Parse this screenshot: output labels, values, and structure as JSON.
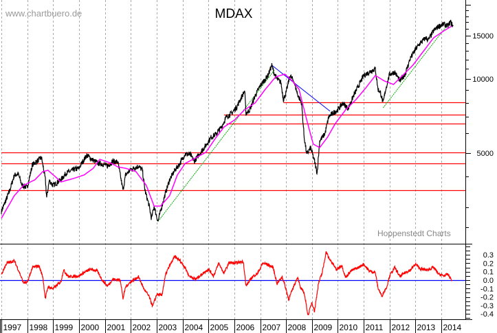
{
  "chart_data": [
    {
      "type": "line",
      "title": "MDAX",
      "watermark": "www.chartbuero.de",
      "source": "Hoppenstedt Charts",
      "y_scale": "log",
      "ylim": [
        2137,
        20960
      ],
      "xlim": [
        1997.0,
        2014.95
      ],
      "grid": "vertical dashed at each year",
      "y_ticks": [
        5000,
        10000,
        15000
      ],
      "x_ticks": [
        "1997",
        "1998",
        "1999",
        "2000",
        "2001",
        "2002",
        "2003",
        "2004",
        "2005",
        "2006",
        "2007",
        "2008",
        "2009",
        "2010",
        "2011",
        "2012",
        "2013",
        "2014"
      ],
      "colors": {
        "price": "#000000",
        "moving_average": "#ff00ff",
        "support_resistance": "#ff0000",
        "uptrend": "#00aa00",
        "downtrend": "#0000ff",
        "grid": "#999999"
      },
      "series": [
        {
          "key": "price",
          "x": [
            1997.0,
            1997.3,
            1997.5,
            1997.65,
            1997.8,
            1998.0,
            1998.2,
            1998.4,
            1998.55,
            1998.7,
            1998.75,
            1998.85,
            1999.0,
            1999.3,
            1999.5,
            1999.8,
            2000.0,
            2000.1,
            2000.2,
            2000.3,
            2000.5,
            2000.7,
            2001.0,
            2001.1,
            2001.3,
            2001.5,
            2001.7,
            2001.8,
            2002.0,
            2002.3,
            2002.45,
            2002.55,
            2002.7,
            2002.8,
            2002.9,
            2003.05,
            2003.2,
            2003.35,
            2003.5,
            2003.7,
            2003.9,
            2004.1,
            2004.3,
            2004.45,
            2004.7,
            2004.9,
            2005.1,
            2005.3,
            2005.5,
            2005.7,
            2005.9,
            2006.1,
            2006.3,
            2006.4,
            2006.45,
            2006.6,
            2006.8,
            2007.0,
            2007.3,
            2007.45,
            2007.55,
            2007.65,
            2007.8,
            2007.9,
            2008.0,
            2008.15,
            2008.3,
            2008.45,
            2008.6,
            2008.7,
            2008.8,
            2008.95,
            2009.1,
            2009.2,
            2009.3,
            2009.5,
            2009.65,
            2009.8,
            2010.0,
            2010.2,
            2010.4,
            2010.6,
            2010.8,
            2011.0,
            2011.3,
            2011.45,
            2011.55,
            2011.65,
            2011.75,
            2011.85,
            2012.0,
            2012.2,
            2012.4,
            2012.6,
            2012.8,
            2013.0,
            2013.2,
            2013.4,
            2013.5,
            2013.7,
            2013.9,
            2014.1,
            2014.25,
            2014.35,
            2014.45
          ],
          "values": [
            2890,
            3460,
            4060,
            4110,
            3690,
            3620,
            4480,
            4650,
            4800,
            3890,
            3290,
            3860,
            3690,
            3890,
            4140,
            4280,
            4330,
            4530,
            4710,
            4900,
            4710,
            4560,
            4480,
            4420,
            4620,
            4590,
            3530,
            4070,
            4280,
            4420,
            4250,
            3510,
            3080,
            2700,
            3040,
            2630,
            3040,
            3460,
            3890,
            4250,
            4530,
            4960,
            4930,
            4620,
            5030,
            5360,
            5790,
            5980,
            6370,
            7020,
            7250,
            7730,
            8520,
            8960,
            7250,
            7490,
            8520,
            9380,
            10330,
            11370,
            10460,
            10000,
            9680,
            8240,
            8790,
            10330,
            9810,
            8620,
            7980,
            5790,
            4930,
            5260,
            4620,
            4140,
            5610,
            5980,
            7020,
            7250,
            7490,
            7980,
            7580,
            8520,
            9380,
            10330,
            10800,
            11010,
            9080,
            8790,
            7980,
            9080,
            10460,
            10660,
            9810,
            10460,
            12130,
            13190,
            14060,
            14700,
            14410,
            15700,
            16400,
            16720,
            16400,
            17070,
            16400
          ]
        },
        {
          "key": "moving_average",
          "x": [
            1997.0,
            1997.5,
            1997.85,
            1998.3,
            1998.6,
            1998.8,
            1999.1,
            1999.3,
            1999.8,
            2000.2,
            2000.55,
            2000.8,
            2001.2,
            2001.5,
            2001.8,
            2002.2,
            2002.6,
            2002.9,
            2003.15,
            2003.5,
            2003.8,
            2004.1,
            2004.5,
            2004.9,
            2005.3,
            2005.6,
            2006.0,
            2006.4,
            2006.8,
            2007.2,
            2007.6,
            2007.95,
            2008.25,
            2008.5,
            2008.8,
            2009.05,
            2009.3,
            2009.6,
            2009.9,
            2010.3,
            2010.7,
            2011.1,
            2011.45,
            2011.8,
            2012.15,
            2012.5,
            2012.9,
            2013.3,
            2013.7,
            2014.1,
            2014.4
          ],
          "values": [
            2710,
            3350,
            3690,
            3890,
            4200,
            4250,
            3990,
            3810,
            3940,
            4070,
            4330,
            4710,
            4560,
            4390,
            4330,
            4200,
            3690,
            3040,
            3040,
            3350,
            4070,
            4530,
            4770,
            5030,
            5790,
            6370,
            6800,
            7490,
            7980,
            9080,
            10200,
            10460,
            9810,
            9080,
            6800,
            5430,
            5260,
            5790,
            6580,
            7490,
            8240,
            9250,
            10330,
            9810,
            9500,
            10330,
            11370,
            12930,
            14700,
            15700,
            16400
          ]
        }
      ],
      "horizontal_lines": [
        {
          "value": 8040,
          "from": 2007.9
        },
        {
          "value": 7160,
          "from": 2005.6
        },
        {
          "value": 6580,
          "from": 2005.7
        },
        {
          "value": 5030,
          "from": 1997.0
        },
        {
          "value": 4530,
          "from": 1997.0
        },
        {
          "value": 3530,
          "from": 1997.0
        }
      ],
      "trendlines": [
        {
          "key": "uptrend",
          "from": [
            2003.05,
            2630
          ],
          "to": [
            2007.55,
            10870
          ]
        },
        {
          "key": "uptrend",
          "from": [
            2011.75,
            7630
          ],
          "to": [
            2014.2,
            16400
          ]
        },
        {
          "key": "downtrend",
          "from": [
            2007.45,
            11370
          ],
          "to": [
            2009.7,
            7390
          ]
        }
      ]
    },
    {
      "type": "line",
      "ylim": [
        -0.45,
        0.38
      ],
      "y_ticks": [
        "0.3",
        "0.2",
        "0.1",
        "0.0",
        "-0.1",
        "-0.2",
        "-0.3",
        "-0.4"
      ],
      "zero_line_color": "#0000ff",
      "series": [
        {
          "key": "oscillator",
          "color": "#ff0000",
          "x": [
            1997.0,
            1997.2,
            1997.5,
            1997.7,
            1997.85,
            1998.0,
            1998.2,
            1998.45,
            1998.6,
            1998.7,
            1998.8,
            1999.0,
            1999.3,
            1999.4,
            1999.6,
            2000.0,
            2000.2,
            2000.45,
            2000.7,
            2000.9,
            2001.1,
            2001.3,
            2001.6,
            2001.7,
            2001.8,
            2002.0,
            2002.3,
            2002.5,
            2002.7,
            2002.85,
            2003.0,
            2003.2,
            2003.35,
            2003.5,
            2003.7,
            2003.9,
            2004.1,
            2004.25,
            2004.5,
            2004.75,
            2005.0,
            2005.2,
            2005.4,
            2005.6,
            2005.8,
            2006.0,
            2006.35,
            2006.45,
            2006.7,
            2006.9,
            2007.1,
            2007.25,
            2007.5,
            2007.65,
            2007.85,
            2008.0,
            2008.1,
            2008.3,
            2008.45,
            2008.55,
            2008.7,
            2008.85,
            2009.0,
            2009.1,
            2009.25,
            2009.4,
            2009.55,
            2009.65,
            2009.8,
            2009.95,
            2010.15,
            2010.3,
            2010.5,
            2010.8,
            2011.0,
            2011.2,
            2011.45,
            2011.55,
            2011.7,
            2011.9,
            2012.0,
            2012.2,
            2012.4,
            2012.6,
            2012.8,
            2013.0,
            2013.2,
            2013.45,
            2013.7,
            2013.9,
            2014.1,
            2014.25,
            2014.4
          ],
          "values": [
            0.065,
            0.2,
            0.23,
            0.09,
            -0.03,
            -0.03,
            0.15,
            0.17,
            0.04,
            -0.22,
            -0.08,
            -0.1,
            -0.02,
            0.12,
            0.04,
            0.05,
            0.09,
            0.13,
            0.11,
            0.0,
            -0.07,
            0.01,
            0.0,
            -0.22,
            -0.08,
            -0.02,
            0.04,
            -0.1,
            -0.19,
            -0.31,
            -0.17,
            -0.18,
            0.07,
            0.17,
            0.28,
            0.23,
            0.15,
            0.05,
            0.01,
            0.07,
            0.13,
            0.05,
            0.2,
            0.08,
            0.21,
            0.2,
            0.22,
            -0.07,
            0.04,
            0.08,
            0.2,
            0.19,
            0.15,
            -0.04,
            0.04,
            -0.11,
            -0.23,
            -0.07,
            0.04,
            -0.09,
            -0.15,
            -0.42,
            -0.26,
            -0.37,
            -0.04,
            0.09,
            0.34,
            0.26,
            0.2,
            0.12,
            0.18,
            0.03,
            0.11,
            0.15,
            0.19,
            0.11,
            0.09,
            -0.09,
            -0.19,
            -0.07,
            0.05,
            0.15,
            0.04,
            0.09,
            0.12,
            0.19,
            0.13,
            0.12,
            0.15,
            0.07,
            0.05,
            0.07,
            0.0
          ]
        }
      ]
    }
  ],
  "labels": {
    "title": "MDAX",
    "watermark": "www.chartbuero.de",
    "source": "Hoppenstedt Charts",
    "y_ticks_top": [
      "5000",
      "10000",
      "15000"
    ],
    "y_ticks_bottom": [
      "0.3",
      "0.2",
      "0.1",
      "0.0",
      "-0.1",
      "-0.2",
      "-0.3",
      "-0.4"
    ],
    "x_ticks": [
      "1997",
      "1998",
      "1999",
      "2000",
      "2001",
      "2002",
      "2003",
      "2004",
      "2005",
      "2006",
      "2007",
      "2008",
      "2009",
      "2010",
      "2011",
      "2012",
      "2013",
      "2014"
    ]
  }
}
